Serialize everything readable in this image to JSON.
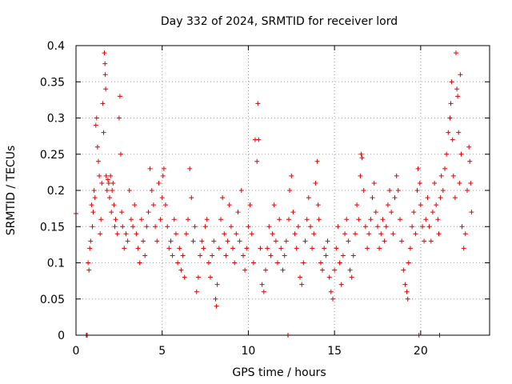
{
  "chart_data": {
    "type": "scatter",
    "title": "Day 332 of 2024, SRMTID for receiver lord",
    "xlabel": "GPS time / hours",
    "ylabel": "SRMTID / TECUs",
    "xlim": [
      0,
      24
    ],
    "ylim": [
      0,
      0.4
    ],
    "x_ticks": [
      0,
      5,
      10,
      15,
      20
    ],
    "x_tick_labels": [
      "0",
      "5",
      "10",
      "15",
      "20"
    ],
    "y_ticks": [
      0,
      0.05,
      0.1,
      0.15,
      0.2,
      0.25,
      0.3,
      0.35,
      0.4
    ],
    "y_tick_labels": [
      "0",
      "0.05",
      "0.1",
      "0.15",
      "0.2",
      "0.25",
      "0.3",
      "0.35",
      "0.4"
    ],
    "grid": true,
    "marker": "+",
    "marker_color": "#e00000",
    "series": [
      {
        "name": "SRMTID",
        "points": [
          [
            0.0,
            0.168
          ],
          [
            0.6,
            0.0
          ],
          [
            0.65,
            0.0
          ],
          [
            0.7,
            0.1
          ],
          [
            0.75,
            0.09
          ],
          [
            0.8,
            0.12
          ],
          [
            0.85,
            0.13
          ],
          [
            0.9,
            0.18
          ],
          [
            0.95,
            0.15
          ],
          [
            1.0,
            0.17
          ],
          [
            1.05,
            0.2
          ],
          [
            1.1,
            0.19
          ],
          [
            1.15,
            0.29
          ],
          [
            1.2,
            0.3
          ],
          [
            1.25,
            0.26
          ],
          [
            1.3,
            0.24
          ],
          [
            1.35,
            0.22
          ],
          [
            1.4,
            0.14
          ],
          [
            1.45,
            0.16
          ],
          [
            1.5,
            0.21
          ],
          [
            1.55,
            0.32
          ],
          [
            1.6,
            0.28
          ],
          [
            1.65,
            0.39
          ],
          [
            1.68,
            0.375
          ],
          [
            1.7,
            0.36
          ],
          [
            1.72,
            0.34
          ],
          [
            1.75,
            0.22
          ],
          [
            1.8,
            0.2
          ],
          [
            1.85,
            0.215
          ],
          [
            1.9,
            0.21
          ],
          [
            1.95,
            0.19
          ],
          [
            2.0,
            0.22
          ],
          [
            2.05,
            0.17
          ],
          [
            2.1,
            0.2
          ],
          [
            2.15,
            0.21
          ],
          [
            2.2,
            0.18
          ],
          [
            2.25,
            0.15
          ],
          [
            2.3,
            0.16
          ],
          [
            2.4,
            0.14
          ],
          [
            2.5,
            0.3
          ],
          [
            2.55,
            0.33
          ],
          [
            2.6,
            0.25
          ],
          [
            2.65,
            0.17
          ],
          [
            2.7,
            0.15
          ],
          [
            2.8,
            0.12
          ],
          [
            2.9,
            0.14
          ],
          [
            3.0,
            0.13
          ],
          [
            3.1,
            0.2
          ],
          [
            3.2,
            0.16
          ],
          [
            3.3,
            0.15
          ],
          [
            3.4,
            0.18
          ],
          [
            3.5,
            0.14
          ],
          [
            3.6,
            0.12
          ],
          [
            3.7,
            0.1
          ],
          [
            3.8,
            0.16
          ],
          [
            3.9,
            0.13
          ],
          [
            4.0,
            0.11
          ],
          [
            4.1,
            0.15
          ],
          [
            4.2,
            0.17
          ],
          [
            4.3,
            0.23
          ],
          [
            4.4,
            0.2
          ],
          [
            4.5,
            0.18
          ],
          [
            4.6,
            0.15
          ],
          [
            4.7,
            0.13
          ],
          [
            4.8,
            0.21
          ],
          [
            4.9,
            0.16
          ],
          [
            5.0,
            0.19
          ],
          [
            5.05,
            0.22
          ],
          [
            5.1,
            0.23
          ],
          [
            5.2,
            0.18
          ],
          [
            5.3,
            0.15
          ],
          [
            5.4,
            0.12
          ],
          [
            5.5,
            0.13
          ],
          [
            5.6,
            0.11
          ],
          [
            5.7,
            0.16
          ],
          [
            5.8,
            0.14
          ],
          [
            5.9,
            0.1
          ],
          [
            6.0,
            0.12
          ],
          [
            6.1,
            0.09
          ],
          [
            6.2,
            0.11
          ],
          [
            6.3,
            0.08
          ],
          [
            6.4,
            0.14
          ],
          [
            6.5,
            0.16
          ],
          [
            6.6,
            0.23
          ],
          [
            6.7,
            0.19
          ],
          [
            6.8,
            0.13
          ],
          [
            6.9,
            0.15
          ],
          [
            7.0,
            0.06
          ],
          [
            7.1,
            0.08
          ],
          [
            7.2,
            0.11
          ],
          [
            7.3,
            0.13
          ],
          [
            7.4,
            0.12
          ],
          [
            7.5,
            0.15
          ],
          [
            7.6,
            0.16
          ],
          [
            7.7,
            0.1
          ],
          [
            7.8,
            0.08
          ],
          [
            7.9,
            0.11
          ],
          [
            8.0,
            0.13
          ],
          [
            8.1,
            0.05
          ],
          [
            8.15,
            0.04
          ],
          [
            8.2,
            0.07
          ],
          [
            8.3,
            0.12
          ],
          [
            8.4,
            0.16
          ],
          [
            8.5,
            0.19
          ],
          [
            8.6,
            0.14
          ],
          [
            8.7,
            0.11
          ],
          [
            8.8,
            0.13
          ],
          [
            8.9,
            0.18
          ],
          [
            9.0,
            0.15
          ],
          [
            9.1,
            0.12
          ],
          [
            9.2,
            0.1
          ],
          [
            9.3,
            0.14
          ],
          [
            9.4,
            0.17
          ],
          [
            9.5,
            0.13
          ],
          [
            9.6,
            0.2
          ],
          [
            9.7,
            0.11
          ],
          [
            9.8,
            0.09
          ],
          [
            9.9,
            0.12
          ],
          [
            10.0,
            0.15
          ],
          [
            10.1,
            0.18
          ],
          [
            10.2,
            0.14
          ],
          [
            10.3,
            0.1
          ],
          [
            10.4,
            0.27
          ],
          [
            10.5,
            0.24
          ],
          [
            10.55,
            0.32
          ],
          [
            10.6,
            0.27
          ],
          [
            10.7,
            0.12
          ],
          [
            10.8,
            0.07
          ],
          [
            10.9,
            0.06
          ],
          [
            11.0,
            0.09
          ],
          [
            11.1,
            0.12
          ],
          [
            11.2,
            0.15
          ],
          [
            11.3,
            0.11
          ],
          [
            11.4,
            0.14
          ],
          [
            11.5,
            0.18
          ],
          [
            11.6,
            0.13
          ],
          [
            11.7,
            0.1
          ],
          [
            11.8,
            0.16
          ],
          [
            11.9,
            0.12
          ],
          [
            12.0,
            0.09
          ],
          [
            12.1,
            0.11
          ],
          [
            12.2,
            0.13
          ],
          [
            12.3,
            0.0
          ],
          [
            12.35,
            0.16
          ],
          [
            12.4,
            0.2
          ],
          [
            12.5,
            0.22
          ],
          [
            12.6,
            0.17
          ],
          [
            12.7,
            0.14
          ],
          [
            12.8,
            0.12
          ],
          [
            12.9,
            0.15
          ],
          [
            13.0,
            0.08
          ],
          [
            13.1,
            0.07
          ],
          [
            13.2,
            0.1
          ],
          [
            13.3,
            0.13
          ],
          [
            13.4,
            0.16
          ],
          [
            13.5,
            0.19
          ],
          [
            13.6,
            0.15
          ],
          [
            13.7,
            0.12
          ],
          [
            13.8,
            0.14
          ],
          [
            13.9,
            0.21
          ],
          [
            14.0,
            0.24
          ],
          [
            14.05,
            0.18
          ],
          [
            14.1,
            0.16
          ],
          [
            14.2,
            0.1
          ],
          [
            14.3,
            0.09
          ],
          [
            14.4,
            0.12
          ],
          [
            14.5,
            0.11
          ],
          [
            14.6,
            0.13
          ],
          [
            14.7,
            0.08
          ],
          [
            14.8,
            0.06
          ],
          [
            14.9,
            0.05
          ],
          [
            15.0,
            0.09
          ],
          [
            15.1,
            0.12
          ],
          [
            15.2,
            0.15
          ],
          [
            15.3,
            0.1
          ],
          [
            15.4,
            0.07
          ],
          [
            15.5,
            0.11
          ],
          [
            15.6,
            0.14
          ],
          [
            15.7,
            0.16
          ],
          [
            15.8,
            0.13
          ],
          [
            15.9,
            0.09
          ],
          [
            16.0,
            0.08
          ],
          [
            16.1,
            0.11
          ],
          [
            16.2,
            0.14
          ],
          [
            16.3,
            0.18
          ],
          [
            16.4,
            0.16
          ],
          [
            16.5,
            0.22
          ],
          [
            16.55,
            0.25
          ],
          [
            16.6,
            0.245
          ],
          [
            16.7,
            0.2
          ],
          [
            16.8,
            0.15
          ],
          [
            16.9,
            0.12
          ],
          [
            17.0,
            0.14
          ],
          [
            17.1,
            0.16
          ],
          [
            17.2,
            0.19
          ],
          [
            17.3,
            0.21
          ],
          [
            17.4,
            0.17
          ],
          [
            17.5,
            0.15
          ],
          [
            17.6,
            0.12
          ],
          [
            17.7,
            0.14
          ],
          [
            17.8,
            0.16
          ],
          [
            17.9,
            0.13
          ],
          [
            18.0,
            0.15
          ],
          [
            18.1,
            0.18
          ],
          [
            18.2,
            0.2
          ],
          [
            18.3,
            0.17
          ],
          [
            18.4,
            0.14
          ],
          [
            18.5,
            0.19
          ],
          [
            18.6,
            0.22
          ],
          [
            18.7,
            0.2
          ],
          [
            18.8,
            0.16
          ],
          [
            18.9,
            0.13
          ],
          [
            19.0,
            0.09
          ],
          [
            19.1,
            0.07
          ],
          [
            19.2,
            0.06
          ],
          [
            19.25,
            0.05
          ],
          [
            19.3,
            0.1
          ],
          [
            19.4,
            0.12
          ],
          [
            19.5,
            0.15
          ],
          [
            19.6,
            0.17
          ],
          [
            19.7,
            0.14
          ],
          [
            19.8,
            0.2
          ],
          [
            19.85,
            0.23
          ],
          [
            19.9,
            0.0
          ],
          [
            19.95,
            0.21
          ],
          [
            20.0,
            0.18
          ],
          [
            20.1,
            0.15
          ],
          [
            20.2,
            0.13
          ],
          [
            20.3,
            0.16
          ],
          [
            20.4,
            0.19
          ],
          [
            20.5,
            0.15
          ],
          [
            20.6,
            0.13
          ],
          [
            20.7,
            0.17
          ],
          [
            20.8,
            0.21
          ],
          [
            20.9,
            0.18
          ],
          [
            21.0,
            0.16
          ],
          [
            21.05,
            0.14
          ],
          [
            21.1,
            0.0
          ],
          [
            21.15,
            0.19
          ],
          [
            21.2,
            0.22
          ],
          [
            21.3,
            0.2
          ],
          [
            21.4,
            0.23
          ],
          [
            21.5,
            0.25
          ],
          [
            21.6,
            0.28
          ],
          [
            21.7,
            0.3
          ],
          [
            21.75,
            0.32
          ],
          [
            21.8,
            0.35
          ],
          [
            21.85,
            0.27
          ],
          [
            21.9,
            0.22
          ],
          [
            22.0,
            0.19
          ],
          [
            22.05,
            0.39
          ],
          [
            22.1,
            0.34
          ],
          [
            22.15,
            0.33
          ],
          [
            22.2,
            0.28
          ],
          [
            22.25,
            0.21
          ],
          [
            22.3,
            0.36
          ],
          [
            22.35,
            0.25
          ],
          [
            22.4,
            0.15
          ],
          [
            22.5,
            0.12
          ],
          [
            22.6,
            0.14
          ],
          [
            22.7,
            0.2
          ],
          [
            22.8,
            0.26
          ],
          [
            22.85,
            0.24
          ],
          [
            22.9,
            0.21
          ],
          [
            22.95,
            0.17
          ]
        ]
      }
    ]
  }
}
